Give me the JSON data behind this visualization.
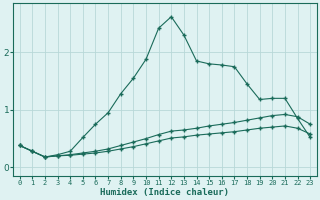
{
  "xlabel": "Humidex (Indice chaleur)",
  "x": [
    0,
    1,
    2,
    3,
    4,
    5,
    6,
    7,
    8,
    9,
    10,
    11,
    12,
    13,
    14,
    15,
    16,
    17,
    18,
    19,
    20,
    21,
    22,
    23
  ],
  "line1": [
    0.38,
    0.28,
    0.18,
    0.22,
    0.28,
    0.52,
    0.75,
    0.95,
    1.28,
    1.55,
    1.88,
    2.42,
    2.62,
    2.3,
    1.85,
    1.8,
    1.78,
    1.75,
    1.45,
    1.18,
    1.2,
    1.2,
    0.85,
    0.52
  ],
  "line2": [
    0.38,
    0.28,
    0.18,
    0.2,
    0.22,
    0.25,
    0.28,
    0.32,
    0.38,
    0.44,
    0.5,
    0.57,
    0.63,
    0.65,
    0.68,
    0.72,
    0.75,
    0.78,
    0.82,
    0.86,
    0.9,
    0.92,
    0.88,
    0.75
  ],
  "line3": [
    0.38,
    0.28,
    0.18,
    0.2,
    0.21,
    0.23,
    0.25,
    0.28,
    0.32,
    0.36,
    0.41,
    0.46,
    0.51,
    0.53,
    0.56,
    0.58,
    0.6,
    0.62,
    0.65,
    0.68,
    0.7,
    0.72,
    0.68,
    0.58
  ],
  "line_color": "#1a6b5a",
  "bg_color": "#dff2f2",
  "grid_color": "#b8d8d8",
  "ylim": [
    -0.15,
    2.85
  ],
  "yticks": [
    0,
    1,
    2
  ],
  "xlim": [
    -0.5,
    23.5
  ],
  "xtick_labels": [
    "0",
    "1",
    "2",
    "3",
    "4",
    "5",
    "6",
    "7",
    "8",
    "9",
    "10",
    "11",
    "12",
    "13",
    "14",
    "15",
    "16",
    "17",
    "18",
    "19",
    "20",
    "21",
    "22",
    "23"
  ]
}
